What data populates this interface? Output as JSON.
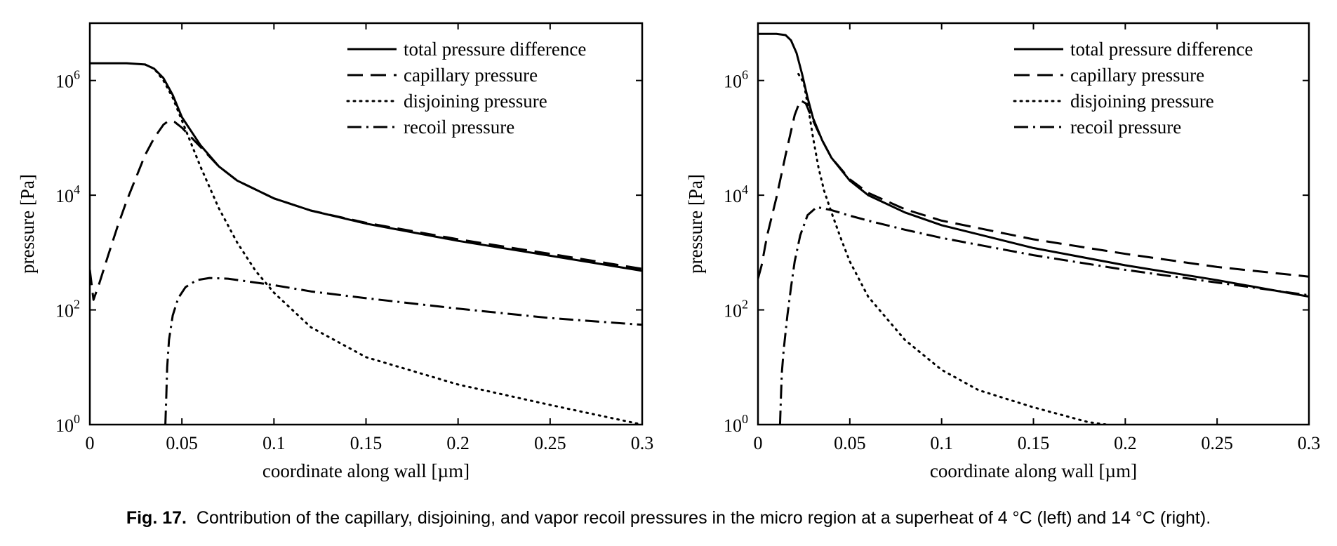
{
  "figure": {
    "caption_label": "Fig. 17.",
    "caption_text": "Contribution of the capillary, disjoining, and vapor recoil pressures in the micro region at a superheat of 4 °C (left) and 14 °C (right)."
  },
  "colors": {
    "line": "#000000",
    "background": "#ffffff"
  },
  "chart_data": [
    {
      "type": "line",
      "title": "",
      "xlabel": "coordinate along wall [µm]",
      "ylabel": "pressure [Pa]",
      "xlim": [
        0,
        0.3
      ],
      "ylim": [
        1,
        10000000
      ],
      "yscale": "log",
      "grid": false,
      "legend_position": "top-right",
      "x_ticks": [
        "0",
        "0.05",
        "0.1",
        "0.15",
        "0.2",
        "0.25",
        "0.3"
      ],
      "x_tick_values": [
        0,
        0.05,
        0.1,
        0.15,
        0.2,
        0.25,
        0.3
      ],
      "y_ticks": [
        "10^0",
        "10^2",
        "10^4",
        "10^6"
      ],
      "y_tick_values": [
        1,
        100,
        10000,
        1000000
      ],
      "series": [
        {
          "name": "total pressure difference",
          "style": "solid",
          "x": [
            0,
            0.01,
            0.02,
            0.03,
            0.035,
            0.04,
            0.045,
            0.05,
            0.06,
            0.07,
            0.08,
            0.1,
            0.12,
            0.15,
            0.2,
            0.25,
            0.3
          ],
          "y": [
            2000000,
            2000000,
            2000000,
            1900000,
            1600000,
            1100000,
            560000,
            230000,
            75000,
            32000,
            18000,
            8800,
            5400,
            3200,
            1600,
            880,
            480
          ]
        },
        {
          "name": "capillary pressure",
          "style": "dashed",
          "x": [
            0,
            0.002,
            0.005,
            0.01,
            0.015,
            0.02,
            0.025,
            0.03,
            0.035,
            0.04,
            0.043,
            0.046,
            0.05,
            0.06,
            0.07,
            0.08,
            0.1,
            0.12,
            0.15,
            0.2,
            0.25,
            0.3
          ],
          "y": [
            500,
            150,
            280,
            900,
            2800,
            8000,
            20000,
            50000,
            100000,
            170000,
            200000,
            190000,
            150000,
            70000,
            32000,
            18000,
            8800,
            5400,
            3300,
            1700,
            950,
            520
          ]
        },
        {
          "name": "disjoining pressure",
          "style": "dotted",
          "x": [
            0.03,
            0.035,
            0.04,
            0.045,
            0.05,
            0.055,
            0.06,
            0.07,
            0.08,
            0.09,
            0.1,
            0.12,
            0.15,
            0.2,
            0.25,
            0.3
          ],
          "y": [
            1900000,
            1600000,
            1000000,
            500000,
            200000,
            80000,
            32000,
            6000,
            1500,
            480,
            200,
            50,
            15,
            5,
            2.2,
            1.0
          ]
        },
        {
          "name": "recoil pressure",
          "style": "dashdot",
          "x": [
            0.041,
            0.0415,
            0.042,
            0.043,
            0.045,
            0.048,
            0.052,
            0.058,
            0.065,
            0.075,
            0.09,
            0.1,
            0.12,
            0.15,
            0.2,
            0.25,
            0.3
          ],
          "y": [
            1,
            3,
            10,
            30,
            80,
            160,
            250,
            330,
            360,
            350,
            300,
            270,
            210,
            160,
            105,
            72,
            55
          ]
        }
      ]
    },
    {
      "type": "line",
      "title": "",
      "xlabel": "coordinate along wall [µm]",
      "ylabel": "pressure [Pa]",
      "xlim": [
        0,
        0.3
      ],
      "ylim": [
        1,
        10000000
      ],
      "yscale": "log",
      "grid": false,
      "legend_position": "top-right",
      "x_ticks": [
        "0",
        "0.05",
        "0.1",
        "0.15",
        "0.2",
        "0.25",
        "0.3"
      ],
      "x_tick_values": [
        0,
        0.05,
        0.1,
        0.15,
        0.2,
        0.25,
        0.3
      ],
      "y_ticks": [
        "10^0",
        "10^2",
        "10^4",
        "10^6"
      ],
      "y_tick_values": [
        1,
        100,
        10000,
        1000000
      ],
      "series": [
        {
          "name": "total pressure difference",
          "style": "solid",
          "x": [
            0,
            0.01,
            0.015,
            0.018,
            0.021,
            0.024,
            0.027,
            0.03,
            0.035,
            0.04,
            0.05,
            0.06,
            0.08,
            0.1,
            0.15,
            0.2,
            0.25,
            0.3
          ],
          "y": [
            6500000,
            6500000,
            6200000,
            5000000,
            3000000,
            1300000,
            500000,
            220000,
            90000,
            45000,
            18000,
            10000,
            5000,
            3000,
            1200,
            600,
            330,
            170
          ]
        },
        {
          "name": "capillary pressure",
          "style": "dashed",
          "x": [
            0,
            0.002,
            0.005,
            0.01,
            0.015,
            0.02,
            0.023,
            0.026,
            0.03,
            0.035,
            0.04,
            0.05,
            0.06,
            0.08,
            0.1,
            0.15,
            0.2,
            0.25,
            0.3
          ],
          "y": [
            350,
            600,
            2000,
            9000,
            50000,
            250000,
            450000,
            400000,
            200000,
            90000,
            45000,
            19000,
            11000,
            5700,
            3600,
            1700,
            950,
            560,
            380
          ]
        },
        {
          "name": "disjoining pressure",
          "style": "dotted",
          "x": [
            0.022,
            0.025,
            0.028,
            0.03,
            0.033,
            0.036,
            0.04,
            0.045,
            0.05,
            0.06,
            0.08,
            0.1,
            0.12,
            0.15,
            0.18,
            0.19
          ],
          "y": [
            1300000,
            900000,
            250000,
            100000,
            30000,
            12000,
            5000,
            1800,
            700,
            170,
            30,
            9,
            4,
            2,
            1.1,
            1
          ]
        },
        {
          "name": "recoil pressure",
          "style": "dashdot",
          "x": [
            0.012,
            0.0125,
            0.013,
            0.014,
            0.016,
            0.018,
            0.02,
            0.023,
            0.027,
            0.032,
            0.04,
            0.05,
            0.06,
            0.08,
            0.1,
            0.15,
            0.2,
            0.25,
            0.3
          ],
          "y": [
            1,
            3,
            8,
            20,
            80,
            250,
            700,
            2000,
            4500,
            6200,
            5500,
            4400,
            3600,
            2500,
            1800,
            900,
            500,
            300,
            180
          ]
        }
      ]
    }
  ]
}
